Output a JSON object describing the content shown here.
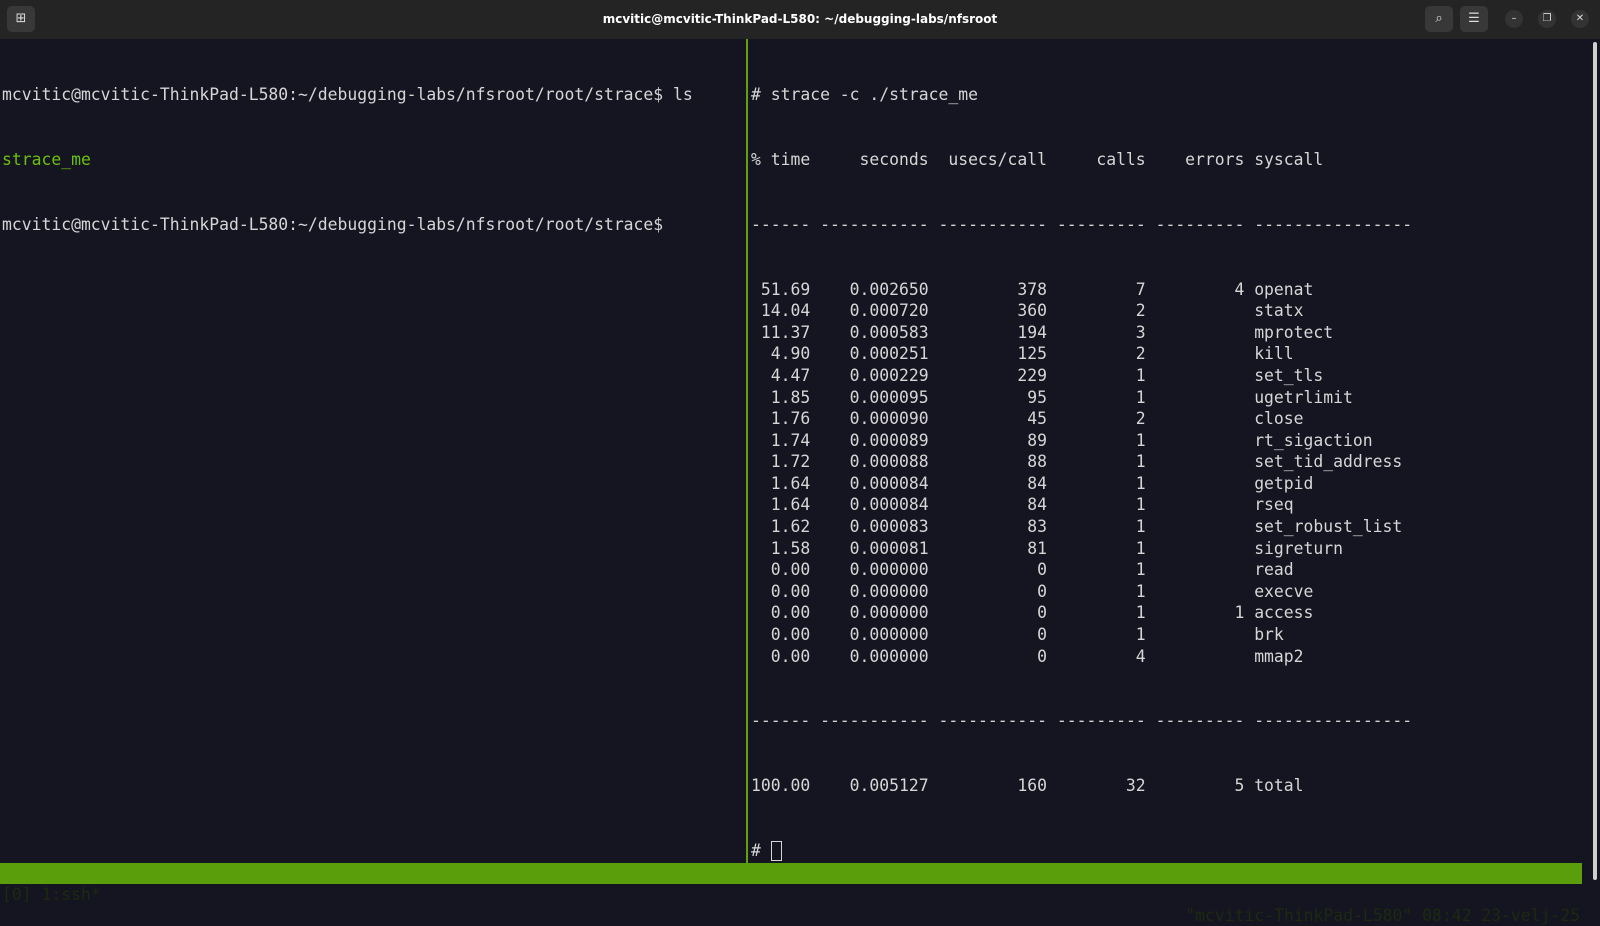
{
  "window": {
    "title": "mcvitic@mcvitic-ThinkPad-L580: ~/debugging-labs/nfsroot",
    "new_tab_icon": "new-tab-icon",
    "search_icon": "search-icon",
    "menu_icon": "hamburger-icon"
  },
  "left_pane": {
    "line1": "mcvitic@mcvitic-ThinkPad-L580:~/debugging-labs/nfsroot/root/strace$ ls",
    "line2": "strace_me",
    "line3": "mcvitic@mcvitic-ThinkPad-L580:~/debugging-labs/nfsroot/root/strace$"
  },
  "right_pane": {
    "command": "# strace -c ./strace_me",
    "headers": [
      "% time",
      "seconds",
      "usecs/call",
      "calls",
      "errors",
      "syscall"
    ],
    "separator": "------ ----------- ----------- --------- --------- ----------------",
    "rows": [
      [
        "51.69",
        "0.002650",
        "378",
        "7",
        "4",
        "openat"
      ],
      [
        "14.04",
        "0.000720",
        "360",
        "2",
        "",
        "statx"
      ],
      [
        "11.37",
        "0.000583",
        "194",
        "3",
        "",
        "mprotect"
      ],
      [
        "4.90",
        "0.000251",
        "125",
        "2",
        "",
        "kill"
      ],
      [
        "4.47",
        "0.000229",
        "229",
        "1",
        "",
        "set_tls"
      ],
      [
        "1.85",
        "0.000095",
        "95",
        "1",
        "",
        "ugetrlimit"
      ],
      [
        "1.76",
        "0.000090",
        "45",
        "2",
        "",
        "close"
      ],
      [
        "1.74",
        "0.000089",
        "89",
        "1",
        "",
        "rt_sigaction"
      ],
      [
        "1.72",
        "0.000088",
        "88",
        "1",
        "",
        "set_tid_address"
      ],
      [
        "1.64",
        "0.000084",
        "84",
        "1",
        "",
        "getpid"
      ],
      [
        "1.64",
        "0.000084",
        "84",
        "1",
        "",
        "rseq"
      ],
      [
        "1.62",
        "0.000083",
        "83",
        "1",
        "",
        "set_robust_list"
      ],
      [
        "1.58",
        "0.000081",
        "81",
        "1",
        "",
        "sigreturn"
      ],
      [
        "0.00",
        "0.000000",
        "0",
        "1",
        "",
        "read"
      ],
      [
        "0.00",
        "0.000000",
        "0",
        "1",
        "",
        "execve"
      ],
      [
        "0.00",
        "0.000000",
        "0",
        "1",
        "1",
        "access"
      ],
      [
        "0.00",
        "0.000000",
        "0",
        "1",
        "",
        "brk"
      ],
      [
        "0.00",
        "0.000000",
        "0",
        "4",
        "",
        "mmap2"
      ]
    ],
    "total": [
      "100.00",
      "0.005127",
      "160",
      "32",
      "5",
      "total"
    ],
    "prompt": "# "
  },
  "status_bar": {
    "left": "[0] 1:ssh*",
    "right": "\"mcvitic-ThinkPad-L580\" 08:42 23-velj-25"
  }
}
